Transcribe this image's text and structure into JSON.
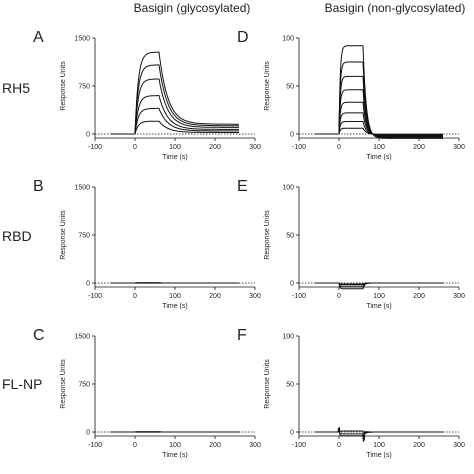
{
  "column_titles": [
    "Basigin (glycosylated)",
    "Basigin (non-glycosylated)"
  ],
  "row_labels": [
    "RH5",
    "RBD",
    "FL-NP"
  ],
  "chart_data": [
    {
      "id": "A",
      "type": "line",
      "row": 0,
      "col": 0,
      "xlabel": "Time (s)",
      "ylabel": "Response Units",
      "xlim": [
        -100,
        300
      ],
      "ylim": [
        0,
        1500
      ],
      "xticks": [
        -100,
        0,
        100,
        200,
        300
      ],
      "yticks": [
        0,
        750,
        1500
      ],
      "baseline_dashed": true,
      "x_start": -60,
      "x_end": 260,
      "inject_start": 0,
      "inject_end": 60,
      "decay_tau": 22,
      "assoc_tau": 8,
      "plateaus": [
        1280,
        1080,
        860,
        600,
        400,
        200
      ],
      "tail": 0.12
    },
    {
      "id": "D",
      "type": "line",
      "row": 0,
      "col": 1,
      "xlabel": "Time (s)",
      "ylabel": "Response Units",
      "xlim": [
        -100,
        300
      ],
      "ylim": [
        0,
        100
      ],
      "xticks": [
        -100,
        0,
        100,
        200,
        300
      ],
      "yticks": [
        0,
        50,
        100
      ],
      "baseline_dashed": true,
      "x_start": -60,
      "x_end": 260,
      "inject_start": 0,
      "inject_end": 60,
      "decay_tau": 8,
      "assoc_tau": 3,
      "plateaus": [
        92,
        75,
        60,
        46,
        33,
        22,
        13,
        6
      ],
      "tail": -0.05
    },
    {
      "id": "B",
      "type": "line",
      "row": 1,
      "col": 0,
      "xlabel": "Time (s)",
      "ylabel": "Response Units",
      "xlim": [
        -100,
        300
      ],
      "ylim": [
        0,
        1500
      ],
      "xticks": [
        -100,
        0,
        100,
        200,
        300
      ],
      "yticks": [
        0,
        750,
        1500
      ],
      "baseline_dashed": true,
      "x_start": -60,
      "x_end": 260,
      "inject_start": 0,
      "inject_end": 60,
      "decay_tau": 5,
      "assoc_tau": 3,
      "plateaus": [
        4,
        2,
        0,
        -2
      ],
      "tail": 0
    },
    {
      "id": "E",
      "type": "line",
      "row": 1,
      "col": 1,
      "xlabel": "Time (s)",
      "ylabel": "Response Units",
      "xlim": [
        -100,
        300
      ],
      "ylim": [
        0,
        100
      ],
      "xticks": [
        -100,
        0,
        100,
        200,
        300
      ],
      "yticks": [
        0,
        50,
        100
      ],
      "baseline_dashed": true,
      "x_start": -60,
      "x_end": 260,
      "inject_start": 0,
      "inject_end": 60,
      "decay_tau": 4,
      "assoc_tau": 2,
      "plateaus": [
        -1,
        -2,
        -4,
        -6
      ],
      "tail": 0
    },
    {
      "id": "C",
      "type": "line",
      "row": 2,
      "col": 0,
      "xlabel": "Time (s)",
      "ylabel": "Response Units",
      "xlim": [
        -100,
        300
      ],
      "ylim": [
        0,
        1500
      ],
      "xticks": [
        -100,
        0,
        100,
        200,
        300
      ],
      "yticks": [
        0,
        750,
        1500
      ],
      "baseline_dashed": true,
      "x_start": -60,
      "x_end": 260,
      "inject_start": 0,
      "inject_end": 60,
      "decay_tau": 5,
      "assoc_tau": 3,
      "plateaus": [
        4,
        2,
        0,
        -2
      ],
      "tail": 0
    },
    {
      "id": "F",
      "type": "line",
      "row": 2,
      "col": 1,
      "xlabel": "Time (s)",
      "ylabel": "Response Units",
      "xlim": [
        -100,
        300
      ],
      "ylim": [
        0,
        100
      ],
      "xticks": [
        -100,
        0,
        100,
        200,
        300
      ],
      "yticks": [
        0,
        50,
        100
      ],
      "baseline_dashed": true,
      "x_start": -60,
      "x_end": 260,
      "inject_start": 0,
      "inject_end": 60,
      "decay_tau": 6,
      "assoc_tau": 2,
      "plateaus": [
        1,
        -2,
        -4
      ],
      "tail": 0,
      "spikes": [
        {
          "x": 0,
          "y": 4
        },
        {
          "x": 62,
          "y": -6
        }
      ]
    }
  ]
}
